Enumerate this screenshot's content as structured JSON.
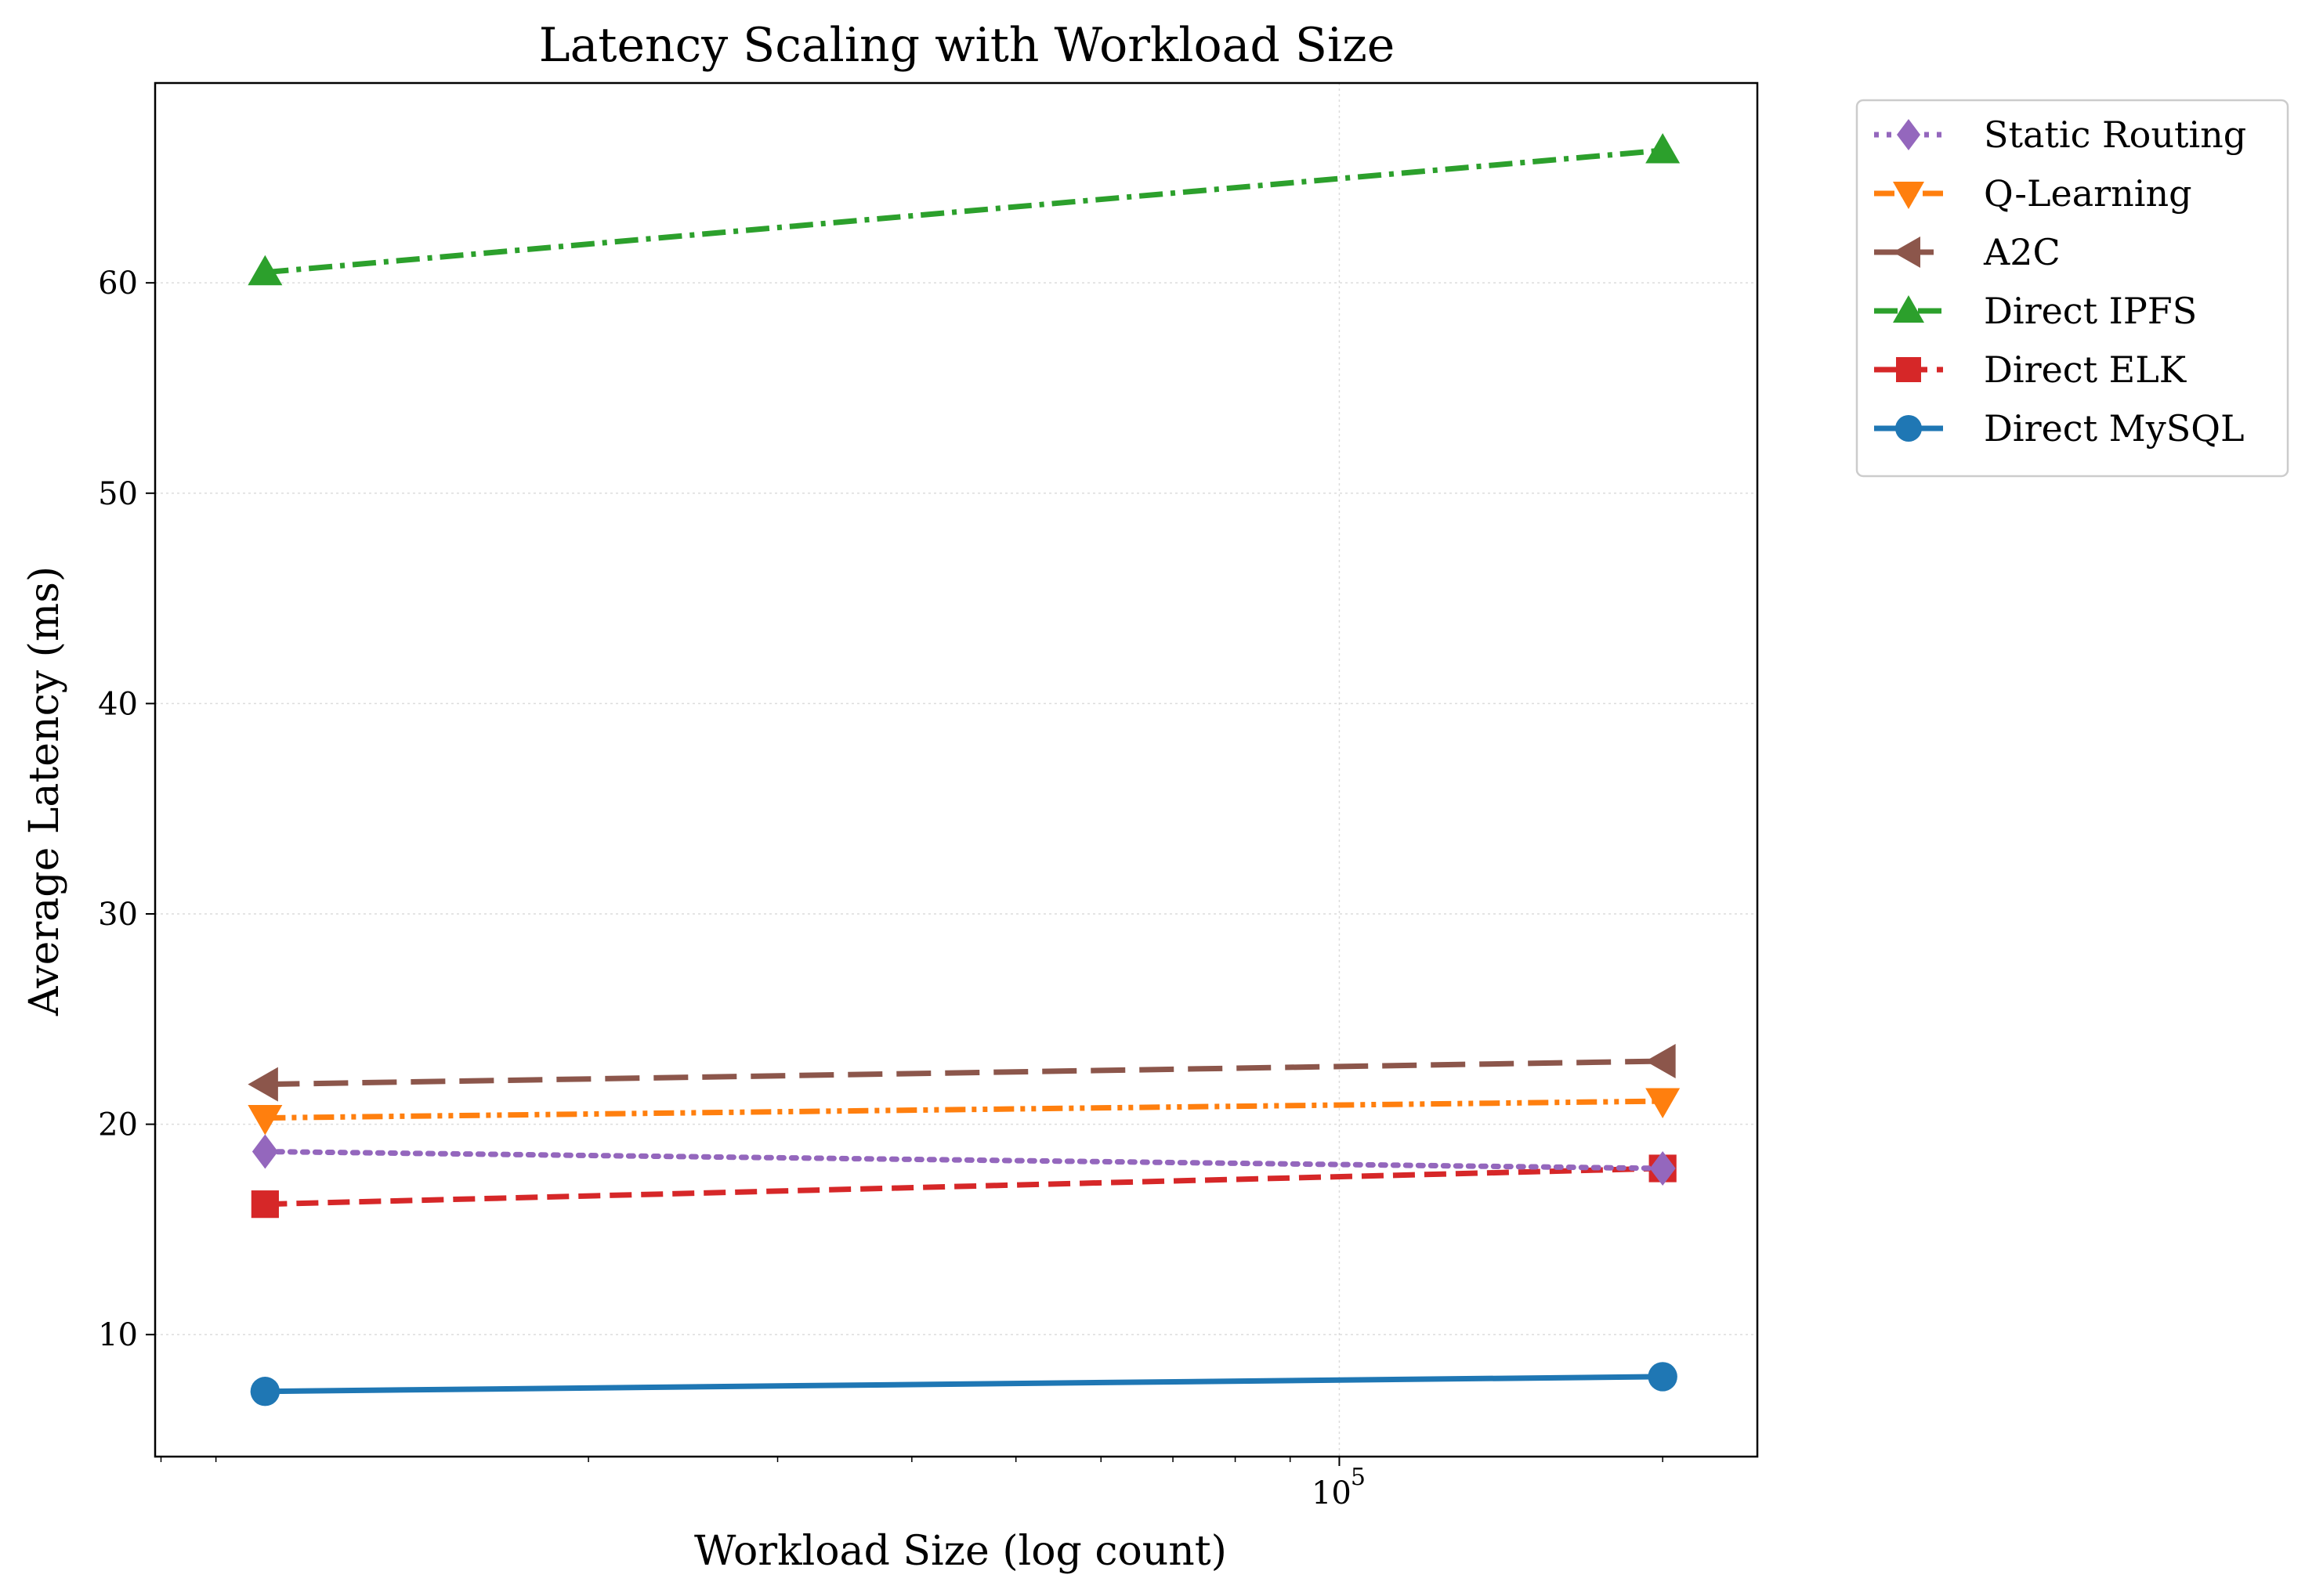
{
  "chart_data": {
    "type": "line",
    "title": "Latency Scaling with Workload Size",
    "xlabel": "Workload Size (log count)",
    "ylabel": "Average Latency (ms)",
    "x_scale": "log",
    "x": [
      10000,
      200000
    ],
    "xlim": [
      7900,
      245000
    ],
    "ylim": [
      4.2,
      69.5
    ],
    "x_ticks": [
      {
        "value": 100000,
        "label": "10",
        "exponent": "5"
      }
    ],
    "y_ticks": [
      10,
      20,
      30,
      40,
      50,
      60
    ],
    "grid": true,
    "legend_placement": "outside-top-right",
    "series": [
      {
        "name": "Static Routing",
        "values": [
          18.7,
          17.9
        ],
        "color": "#9467bd",
        "marker": "diamond",
        "linestyle": "dotted"
      },
      {
        "name": "Q-Learning",
        "values": [
          20.3,
          21.1
        ],
        "color": "#ff7f0e",
        "marker": "triangle-down",
        "linestyle": "dashdotdot"
      },
      {
        "name": "A2C",
        "values": [
          21.9,
          23.0
        ],
        "color": "#8c564b",
        "marker": "triangle-left",
        "linestyle": "longdash"
      },
      {
        "name": "Direct IPFS",
        "values": [
          60.5,
          66.3
        ],
        "color": "#2ca02c",
        "marker": "triangle-up",
        "linestyle": "dashdot"
      },
      {
        "name": "Direct ELK",
        "values": [
          16.2,
          17.9
        ],
        "color": "#d62728",
        "marker": "square",
        "linestyle": "dashed"
      },
      {
        "name": "Direct MySQL",
        "values": [
          7.3,
          8.0
        ],
        "color": "#1f77b4",
        "marker": "circle",
        "linestyle": "solid"
      }
    ],
    "legend_order": [
      "Static Routing",
      "Q-Learning",
      "A2C",
      "Direct IPFS",
      "Direct ELK",
      "Direct MySQL"
    ]
  }
}
